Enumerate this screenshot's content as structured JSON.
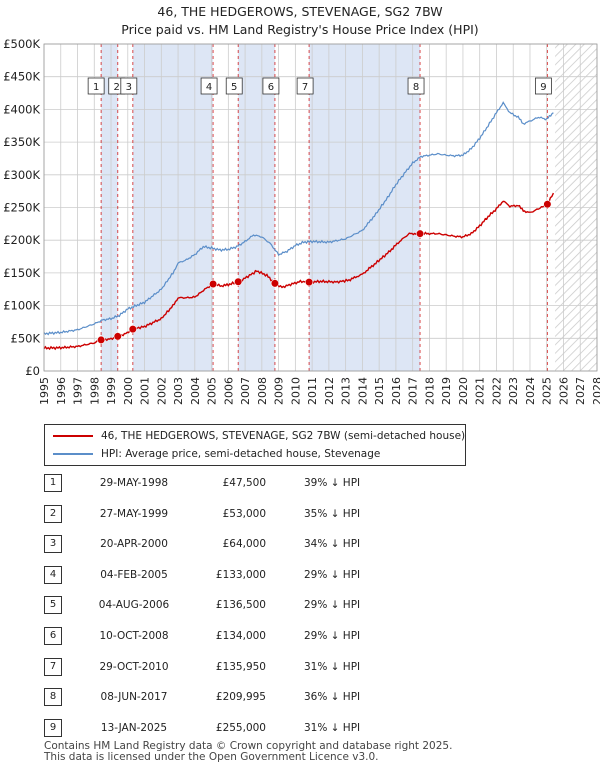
{
  "title_line1": "46, THE HEDGEROWS, STEVENAGE, SG2 7BW",
  "title_line2": "Price paid vs. HM Land Registry's House Price Index (HPI)",
  "colors": {
    "price_paid": "#cc0000",
    "hpi": "#5b8ec9",
    "shade": "#dde6f5",
    "grid": "#cccccc",
    "vline": "#cc0000"
  },
  "chart_data": {
    "type": "line",
    "title": "46, THE HEDGEROWS, STEVENAGE, SG2 7BW",
    "subtitle": "Price paid vs. HM Land Registry's House Price Index (HPI)",
    "xlabel": "",
    "ylabel": "",
    "xlim": [
      1995,
      2028
    ],
    "ylim": [
      0,
      500000
    ],
    "grid": true,
    "legend_position": "bottom",
    "x_ticks": [
      1995,
      1996,
      1997,
      1998,
      1999,
      2000,
      2001,
      2002,
      2003,
      2004,
      2005,
      2006,
      2007,
      2008,
      2009,
      2010,
      2011,
      2012,
      2013,
      2014,
      2015,
      2016,
      2017,
      2018,
      2019,
      2020,
      2021,
      2022,
      2023,
      2024,
      2025,
      2026,
      2027,
      2028
    ],
    "y_ticks": [
      {
        "value": 0,
        "label": "£0"
      },
      {
        "value": 50000,
        "label": "£50K"
      },
      {
        "value": 100000,
        "label": "£100K"
      },
      {
        "value": 150000,
        "label": "£150K"
      },
      {
        "value": 200000,
        "label": "£200K"
      },
      {
        "value": 250000,
        "label": "£250K"
      },
      {
        "value": 300000,
        "label": "£300K"
      },
      {
        "value": 350000,
        "label": "£350K"
      },
      {
        "value": 400000,
        "label": "£400K"
      },
      {
        "value": 450000,
        "label": "£450K"
      },
      {
        "value": 500000,
        "label": "£500K"
      }
    ],
    "future_hatch_from": 2025.5,
    "series": [
      {
        "name": "46, THE HEDGEROWS, STEVENAGE, SG2 7BW (semi-detached house)",
        "color": "#cc0000",
        "points": [
          [
            1995.0,
            35000
          ],
          [
            1996.0,
            35500
          ],
          [
            1997.0,
            37500
          ],
          [
            1998.0,
            43000
          ],
          [
            1998.41,
            47500
          ],
          [
            1999.0,
            49000
          ],
          [
            1999.4,
            53000
          ],
          [
            1999.8,
            56000
          ],
          [
            2000.3,
            64000
          ],
          [
            2001.0,
            68000
          ],
          [
            2002.0,
            80000
          ],
          [
            2002.7,
            100000
          ],
          [
            2003.0,
            112000
          ],
          [
            2003.5,
            112000
          ],
          [
            2004.0,
            113000
          ],
          [
            2004.6,
            125000
          ],
          [
            2005.09,
            133000
          ],
          [
            2005.6,
            130000
          ],
          [
            2006.0,
            132000
          ],
          [
            2006.59,
            136500
          ],
          [
            2007.0,
            142000
          ],
          [
            2007.7,
            153000
          ],
          [
            2008.3,
            146000
          ],
          [
            2008.78,
            134000
          ],
          [
            2009.2,
            128000
          ],
          [
            2009.8,
            133000
          ],
          [
            2010.3,
            137000
          ],
          [
            2010.82,
            135950
          ],
          [
            2011.5,
            137000
          ],
          [
            2012.5,
            136000
          ],
          [
            2013.2,
            139000
          ],
          [
            2014.0,
            148000
          ],
          [
            2014.8,
            165000
          ],
          [
            2015.5,
            180000
          ],
          [
            2016.3,
            200000
          ],
          [
            2016.8,
            210000
          ],
          [
            2017.44,
            209995
          ],
          [
            2018.0,
            210000
          ],
          [
            2018.5,
            210000
          ],
          [
            2019.0,
            208000
          ],
          [
            2019.5,
            206000
          ],
          [
            2020.0,
            205000
          ],
          [
            2020.5,
            210000
          ],
          [
            2021.0,
            222000
          ],
          [
            2021.5,
            236000
          ],
          [
            2022.0,
            248000
          ],
          [
            2022.4,
            260000
          ],
          [
            2022.8,
            252000
          ],
          [
            2023.3,
            253000
          ],
          [
            2023.6,
            245000
          ],
          [
            2024.0,
            242000
          ],
          [
            2024.5,
            248000
          ],
          [
            2025.04,
            255000
          ],
          [
            2025.4,
            272000
          ]
        ]
      },
      {
        "name": "HPI: Average price, semi-detached house, Stevenage",
        "color": "#5b8ec9",
        "points": [
          [
            1995.0,
            57000
          ],
          [
            1996.0,
            59000
          ],
          [
            1997.0,
            63000
          ],
          [
            1998.0,
            72000
          ],
          [
            1998.5,
            78000
          ],
          [
            1999.0,
            80000
          ],
          [
            1999.5,
            85000
          ],
          [
            2000.0,
            95000
          ],
          [
            2001.0,
            105000
          ],
          [
            2002.0,
            125000
          ],
          [
            2002.7,
            150000
          ],
          [
            2003.0,
            165000
          ],
          [
            2003.5,
            170000
          ],
          [
            2004.0,
            178000
          ],
          [
            2004.5,
            190000
          ],
          [
            2005.0,
            188000
          ],
          [
            2005.5,
            185000
          ],
          [
            2006.0,
            186000
          ],
          [
            2006.5,
            190000
          ],
          [
            2007.0,
            198000
          ],
          [
            2007.5,
            208000
          ],
          [
            2008.0,
            205000
          ],
          [
            2008.5,
            195000
          ],
          [
            2009.0,
            178000
          ],
          [
            2009.5,
            183000
          ],
          [
            2010.0,
            192000
          ],
          [
            2010.5,
            197000
          ],
          [
            2011.0,
            198000
          ],
          [
            2012.0,
            197000
          ],
          [
            2013.0,
            202000
          ],
          [
            2014.0,
            215000
          ],
          [
            2014.8,
            240000
          ],
          [
            2015.5,
            265000
          ],
          [
            2016.0,
            285000
          ],
          [
            2016.5,
            302000
          ],
          [
            2017.0,
            318000
          ],
          [
            2017.5,
            328000
          ],
          [
            2018.0,
            330000
          ],
          [
            2018.5,
            332000
          ],
          [
            2019.0,
            330000
          ],
          [
            2019.5,
            329000
          ],
          [
            2020.0,
            330000
          ],
          [
            2020.5,
            340000
          ],
          [
            2021.0,
            356000
          ],
          [
            2021.5,
            375000
          ],
          [
            2022.0,
            395000
          ],
          [
            2022.4,
            410000
          ],
          [
            2022.8,
            395000
          ],
          [
            2023.3,
            388000
          ],
          [
            2023.6,
            378000
          ],
          [
            2024.0,
            382000
          ],
          [
            2024.5,
            388000
          ],
          [
            2025.0,
            385000
          ],
          [
            2025.4,
            395000
          ]
        ]
      }
    ],
    "sales": [
      {
        "n": "1",
        "x": 1998.41,
        "date": "29-MAY-1998",
        "price": 47500,
        "price_label": "£47,500",
        "hpi": "39% ↓ HPI"
      },
      {
        "n": "2",
        "x": 1999.4,
        "date": "27-MAY-1999",
        "price": 53000,
        "price_label": "£53,000",
        "hpi": "35% ↓ HPI"
      },
      {
        "n": "3",
        "x": 2000.3,
        "date": "20-APR-2000",
        "price": 64000,
        "price_label": "£64,000",
        "hpi": "34% ↓ HPI"
      },
      {
        "n": "4",
        "x": 2005.09,
        "date": "04-FEB-2005",
        "price": 133000,
        "price_label": "£133,000",
        "hpi": "29% ↓ HPI"
      },
      {
        "n": "5",
        "x": 2006.59,
        "date": "04-AUG-2006",
        "price": 136500,
        "price_label": "£136,500",
        "hpi": "29% ↓ HPI"
      },
      {
        "n": "6",
        "x": 2008.78,
        "date": "10-OCT-2008",
        "price": 134000,
        "price_label": "£134,000",
        "hpi": "29% ↓ HPI"
      },
      {
        "n": "7",
        "x": 2010.82,
        "date": "29-OCT-2010",
        "price": 135950,
        "price_label": "£135,950",
        "hpi": "31% ↓ HPI"
      },
      {
        "n": "8",
        "x": 2017.44,
        "date": "08-JUN-2017",
        "price": 209995,
        "price_label": "£209,995",
        "hpi": "36% ↓ HPI"
      },
      {
        "n": "9",
        "x": 2025.04,
        "date": "13-JAN-2025",
        "price": 255000,
        "price_label": "£255,000",
        "hpi": "31% ↓ HPI"
      }
    ]
  },
  "legend": {
    "price_label": "46, THE HEDGEROWS, STEVENAGE, SG2 7BW (semi-detached house)",
    "hpi_label": "HPI: Average price, semi-detached house, Stevenage"
  },
  "footer": {
    "line1": "Contains HM Land Registry data © Crown copyright and database right 2025.",
    "line2": "This data is licensed under the Open Government Licence v3.0."
  }
}
